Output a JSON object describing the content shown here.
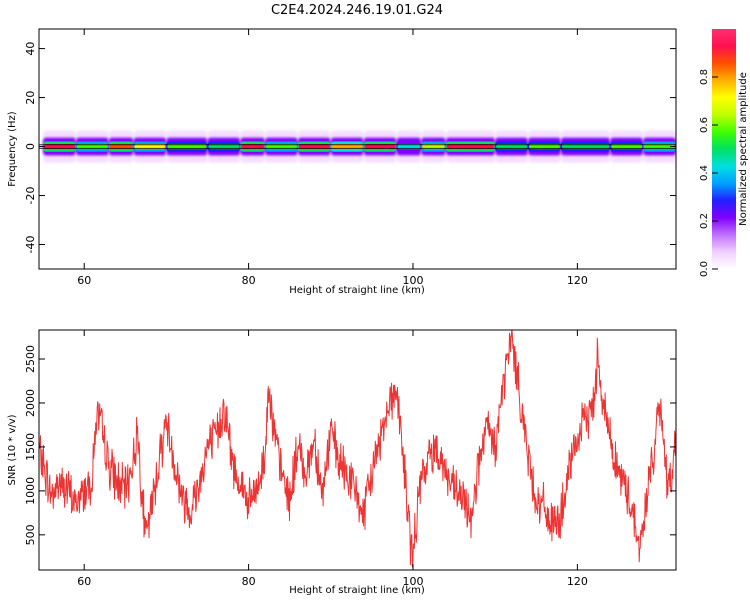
{
  "title": "C2E4.2024.246.19.01.G24",
  "colors": {
    "snr_line": "#ee3333",
    "colormap": [
      "#ffffff",
      "#f0d0ff",
      "#c070ff",
      "#8000ff",
      "#2020ff",
      "#00a0ff",
      "#00e0e0",
      "#00e060",
      "#40ff00",
      "#c0ff00",
      "#ffff00",
      "#ffb000",
      "#ff5000",
      "#ff1050",
      "#ff3070"
    ]
  },
  "chart_data": [
    {
      "type": "heatmap",
      "xlabel": "Height of straight line (km)",
      "ylabel": "Frequency (Hz)",
      "xlim": [
        54.5,
        132
      ],
      "ylim": [
        -50,
        48
      ],
      "xticks": [
        60,
        80,
        100,
        120
      ],
      "yticks": [
        -40,
        -20,
        0,
        20,
        40
      ],
      "grid": false,
      "colorbar": {
        "label": "Normalized spectral amplitude",
        "range": [
          0,
          1
        ],
        "ticks": [
          0.0,
          0.2,
          0.4,
          0.6,
          0.8
        ]
      },
      "ridge": {
        "frequency_hz": 0,
        "spread_hz": 3,
        "segments": [
          {
            "x": [
              55,
              59
            ],
            "amplitude": 0.95
          },
          {
            "x": [
              59,
              63
            ],
            "amplitude": 0.6
          },
          {
            "x": [
              63,
              66
            ],
            "amplitude": 0.85
          },
          {
            "x": [
              66,
              70
            ],
            "amplitude": 0.7
          },
          {
            "x": [
              70,
              75
            ],
            "amplitude": 0.55
          },
          {
            "x": [
              75,
              79
            ],
            "amplitude": 0.5
          },
          {
            "x": [
              79,
              82
            ],
            "amplitude": 0.9
          },
          {
            "x": [
              82,
              86
            ],
            "amplitude": 0.6
          },
          {
            "x": [
              86,
              90
            ],
            "amplitude": 0.9
          },
          {
            "x": [
              90,
              94
            ],
            "amplitude": 0.75
          },
          {
            "x": [
              94,
              98
            ],
            "amplitude": 0.95
          },
          {
            "x": [
              98,
              101
            ],
            "amplitude": 0.45
          },
          {
            "x": [
              101,
              104
            ],
            "amplitude": 0.65
          },
          {
            "x": [
              104,
              110
            ],
            "amplitude": 0.95
          },
          {
            "x": [
              110,
              114
            ],
            "amplitude": 0.5
          },
          {
            "x": [
              114,
              118
            ],
            "amplitude": 0.55
          },
          {
            "x": [
              118,
              124
            ],
            "amplitude": 0.5
          },
          {
            "x": [
              124,
              128
            ],
            "amplitude": 0.55
          },
          {
            "x": [
              128,
              132
            ],
            "amplitude": 0.6
          }
        ]
      }
    },
    {
      "type": "line",
      "xlabel": "Height of straight line (km)",
      "ylabel": "SNR (10 * v/v)",
      "xlim": [
        54.5,
        132
      ],
      "ylim": [
        100,
        2830
      ],
      "xticks": [
        60,
        80,
        100,
        120
      ],
      "yticks": [
        500,
        1000,
        1500,
        2000,
        2500
      ],
      "grid": false,
      "series": [
        {
          "x": [
            54.5,
            55,
            56,
            57,
            58,
            59,
            60,
            61,
            61.5,
            62,
            63,
            64,
            65,
            66,
            66.5,
            67,
            67.5,
            68,
            69,
            70,
            71,
            72,
            73,
            74,
            75,
            76,
            77,
            77.5,
            78,
            79,
            80,
            81,
            82,
            82.5,
            83,
            84,
            85,
            86,
            87,
            88,
            89,
            90,
            91,
            92,
            93,
            94,
            95,
            96,
            97,
            98,
            99,
            99.5,
            100,
            100.5,
            101,
            102,
            103,
            104,
            105,
            106,
            107,
            108,
            109,
            110,
            111,
            111.5,
            112,
            113,
            114,
            115,
            116,
            117,
            118,
            119,
            120,
            121,
            122,
            122.5,
            123,
            124,
            125,
            126,
            127,
            127.5,
            128,
            129,
            130,
            130.5,
            131,
            132
          ],
          "values": [
            1450,
            1300,
            950,
            1100,
            1000,
            850,
            1000,
            1150,
            1900,
            1750,
            1300,
            1100,
            1000,
            1350,
            1700,
            1000,
            450,
            700,
            1300,
            1800,
            1300,
            900,
            800,
            1100,
            1500,
            1600,
            1950,
            1700,
            1300,
            1100,
            850,
            1000,
            1400,
            2300,
            1700,
            1200,
            900,
            1500,
            1200,
            1600,
            950,
            1700,
            1300,
            1200,
            1000,
            700,
            1200,
            1600,
            2000,
            2150,
            1200,
            600,
            200,
            800,
            1100,
            1400,
            1500,
            1200,
            1000,
            900,
            700,
            1300,
            1700,
            1500,
            2200,
            2500,
            2750,
            2100,
            1400,
            900,
            800,
            600,
            700,
            1200,
            1600,
            1800,
            2000,
            2600,
            2100,
            1600,
            1200,
            1000,
            700,
            300,
            600,
            1300,
            1900,
            1700,
            900,
            1600
          ]
        }
      ]
    }
  ]
}
